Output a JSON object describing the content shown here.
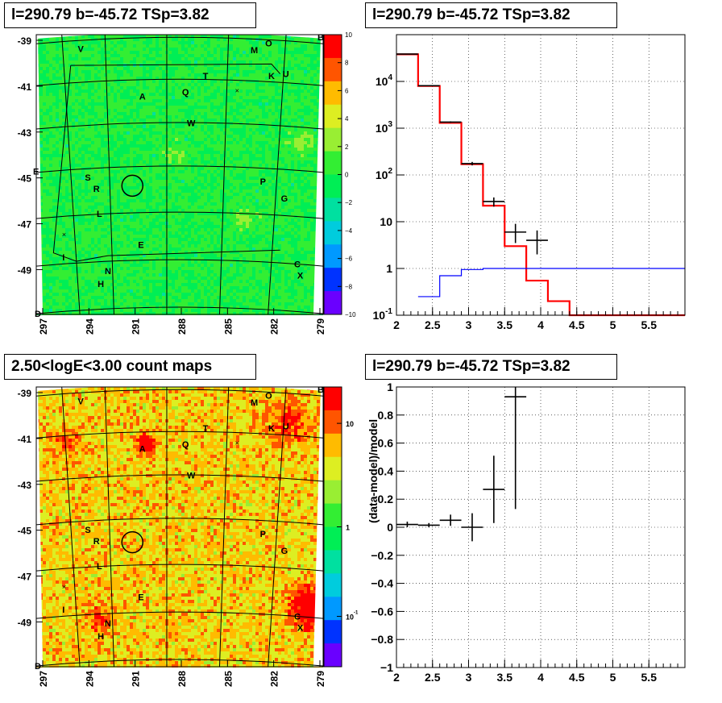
{
  "panels": {
    "tl_title": "l=290.79 b=-45.72 TSp=3.82",
    "tr_title": "l=290.79 b=-45.72 TSp=3.82",
    "bl_title": "2.50<logE<3.00 count maps",
    "br_title": "l=290.79 b=-45.72 TSp=3.82"
  },
  "colors": {
    "model": "#ff0000",
    "background_model": "#0000ff",
    "data": "#000000"
  },
  "chart_data": [
    {
      "type": "heatmap",
      "name": "residual-map",
      "x_ticks": [
        "297",
        "294",
        "291",
        "288",
        "285",
        "282",
        "279"
      ],
      "y_ticks": [
        "-39",
        "-41",
        "-43",
        "-45",
        "-47",
        "-49"
      ],
      "colorbar_ticks": [
        "10",
        "8",
        "6",
        "4",
        "2",
        "0",
        "−2",
        "−4",
        "−6",
        "−8",
        "−10"
      ],
      "zlim": [
        -10,
        10
      ],
      "corner_labels": [
        "B",
        "D",
        "E"
      ],
      "sources": [
        "V",
        "M",
        "O",
        "T",
        "K",
        "U",
        "A",
        "Q",
        "W",
        "S",
        "R",
        "P",
        "G",
        "L",
        "I",
        "E",
        "N",
        "C",
        "H",
        "X"
      ],
      "colormap": [
        "#6a00ff",
        "#0033ff",
        "#0099ff",
        "#00ccdd",
        "#00e0a0",
        "#00ee55",
        "#33ee33",
        "#99ee33",
        "#ddee22",
        "#ffbb00",
        "#ff5500",
        "#ff0000"
      ]
    },
    {
      "type": "line",
      "name": "count-spectrum",
      "xlim": [
        2,
        6
      ],
      "ylim": [
        0.1,
        100000
      ],
      "ylog": true,
      "x_ticks": [
        "2",
        "2.5",
        "3",
        "3.5",
        "4",
        "4.5",
        "5",
        "5.5"
      ],
      "y_ticks": [
        "10^{-1}",
        "1",
        "10",
        "10^{2}",
        "10^{3}",
        "10^{4}"
      ],
      "grid": true,
      "series": [
        {
          "style": "step",
          "color": "#ff0000",
          "edges": [
            2,
            2.3,
            2.6,
            2.9,
            3.2,
            3.5,
            3.8,
            4.1,
            4.4,
            6
          ],
          "values": [
            38000,
            8000,
            1300,
            170,
            22,
            3,
            0.55,
            0.2,
            0.1
          ]
        },
        {
          "style": "step",
          "color": "#0000ff",
          "edges": [
            2.3,
            2.6,
            2.9,
            3.2,
            6
          ],
          "values": [
            0.25,
            0.7,
            0.95,
            1.0
          ]
        },
        {
          "style": "errorbars",
          "color": "#000000",
          "points": [
            {
              "x": 2.15,
              "y": 38500,
              "xerr": 0.15,
              "ylo": 38000,
              "yhi": 39000
            },
            {
              "x": 2.45,
              "y": 8100,
              "xerr": 0.15,
              "ylo": 8000,
              "yhi": 8300
            },
            {
              "x": 2.75,
              "y": 1350,
              "xerr": 0.15,
              "ylo": 1300,
              "yhi": 1400
            },
            {
              "x": 3.05,
              "y": 175,
              "xerr": 0.15,
              "ylo": 160,
              "yhi": 190
            },
            {
              "x": 3.35,
              "y": 27,
              "xerr": 0.15,
              "ylo": 21,
              "yhi": 33
            },
            {
              "x": 3.65,
              "y": 6,
              "xerr": 0.15,
              "ylo": 3.5,
              "yhi": 9
            },
            {
              "x": 3.95,
              "y": 4,
              "xerr": 0.15,
              "ylo": 2,
              "yhi": 6.5
            }
          ]
        }
      ]
    },
    {
      "type": "heatmap",
      "name": "count-map",
      "x_ticks": [
        "297",
        "294",
        "291",
        "288",
        "285",
        "282",
        "279"
      ],
      "y_ticks": [
        "-39",
        "-41",
        "-43",
        "-45",
        "-47",
        "-49"
      ],
      "colorbar_ticks": [
        "10",
        "1",
        "10^{-1}"
      ],
      "corner_labels": [
        "B",
        "D"
      ],
      "sources": [
        "V",
        "M",
        "O",
        "T",
        "K",
        "U",
        "A",
        "Q",
        "W",
        "S",
        "R",
        "P",
        "G",
        "L",
        "I",
        "E",
        "N",
        "C",
        "H",
        "X"
      ],
      "colormap": [
        "#6a00ff",
        "#0033ff",
        "#0099ff",
        "#00ccdd",
        "#00e0a0",
        "#00ee55",
        "#33ee33",
        "#99ee33",
        "#ddee22",
        "#ffbb00",
        "#ff5500",
        "#ff0000"
      ]
    },
    {
      "type": "scatter",
      "name": "residual-ratio",
      "xlim": [
        2,
        6
      ],
      "ylim": [
        -1,
        1
      ],
      "ylabel": "(data-model)/model",
      "x_ticks": [
        "2",
        "2.5",
        "3",
        "3.5",
        "4",
        "4.5",
        "5",
        "5.5"
      ],
      "y_ticks": [
        "1",
        "0.8",
        "0.6",
        "0.4",
        "0.2",
        "0",
        "−0.2",
        "−0.4",
        "−0.6",
        "−0.8",
        "−1"
      ],
      "grid": true,
      "points": [
        {
          "x": 2.15,
          "y": 0.02,
          "xerr": 0.15,
          "ylo": 0.0,
          "yhi": 0.04
        },
        {
          "x": 2.45,
          "y": 0.015,
          "xerr": 0.15,
          "ylo": 0.0,
          "yhi": 0.03
        },
        {
          "x": 2.75,
          "y": 0.05,
          "xerr": 0.15,
          "ylo": 0.01,
          "yhi": 0.09
        },
        {
          "x": 3.05,
          "y": 0.0,
          "xerr": 0.15,
          "ylo": -0.1,
          "yhi": 0.1
        },
        {
          "x": 3.35,
          "y": 0.27,
          "xerr": 0.15,
          "ylo": 0.03,
          "yhi": 0.51
        },
        {
          "x": 3.65,
          "y": 0.93,
          "xerr": 0.15,
          "ylo": 0.13,
          "yhi": 1.0
        }
      ]
    }
  ]
}
